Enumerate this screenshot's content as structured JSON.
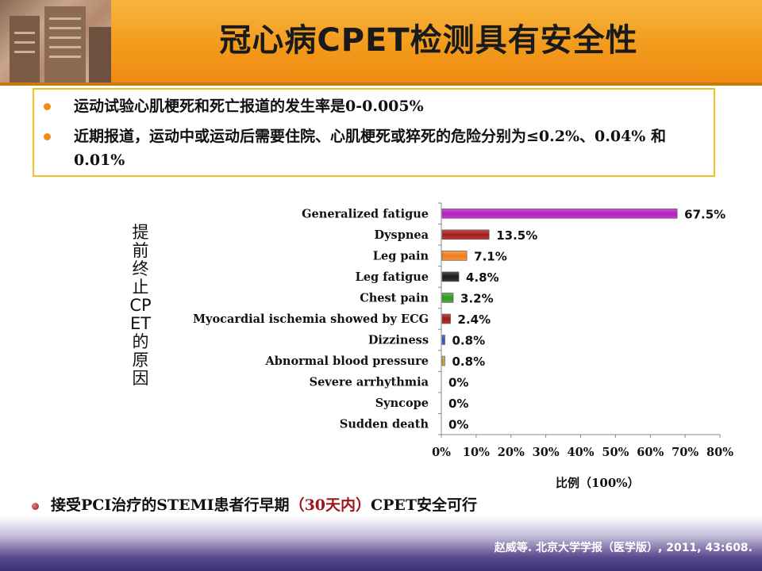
{
  "title": "冠心病CPET检测具有安全性",
  "bullets": [
    "运动试验心肌梗死和死亡报道的发生率是0-0.005%",
    "近期报道，运动中或运动后需要住院、心肌梗死或猝死的危险分别为≤0.2%、0.04% 和 0.01%"
  ],
  "colors": {
    "bullet": "#f08a1c",
    "box_border": "#f0c020"
  },
  "chart_data": {
    "type": "bar",
    "orientation": "horizontal",
    "side_label": "提前终止CPET的原因",
    "xlabel": "比例（100%）",
    "xlim": [
      0,
      80
    ],
    "xticks": [
      "0%",
      "10%",
      "20%",
      "30%",
      "40%",
      "50%",
      "60%",
      "70%",
      "80%"
    ],
    "categories": [
      "Generalized fatigue",
      "Dyspnea",
      "Leg pain",
      "Leg fatigue",
      "Chest pain",
      "Myocardial ischemia showed by ECG",
      "Dizziness",
      "Abnormal blood pressure",
      "Severe arrhythmia",
      "Syncope",
      "Sudden death"
    ],
    "values": [
      67.5,
      13.5,
      7.1,
      4.8,
      3.2,
      2.4,
      0.8,
      0.8,
      0,
      0,
      0
    ],
    "labels": [
      "67.5%",
      "13.5%",
      "7.1%",
      "4.8%",
      "3.2%",
      "2.4%",
      "0.8%",
      "0.8%",
      "0%",
      "0%",
      "0%"
    ],
    "bar_colors": [
      "#b51fc4",
      "#a51c1c",
      "#f07f1c",
      "#1a1a1a",
      "#2e9a1e",
      "#a01818",
      "#3050c0",
      "#c8a030",
      "#888888",
      "#888888",
      "#888888"
    ],
    "grid": false,
    "legend": "none"
  },
  "note": {
    "pre": "接受PCI治疗的STEMI患者行早期",
    "highlight": "（30天内）",
    "post": "CPET安全可行"
  },
  "citation": "赵威等. 北京大学学报（医学版）, 2011, 43:608."
}
